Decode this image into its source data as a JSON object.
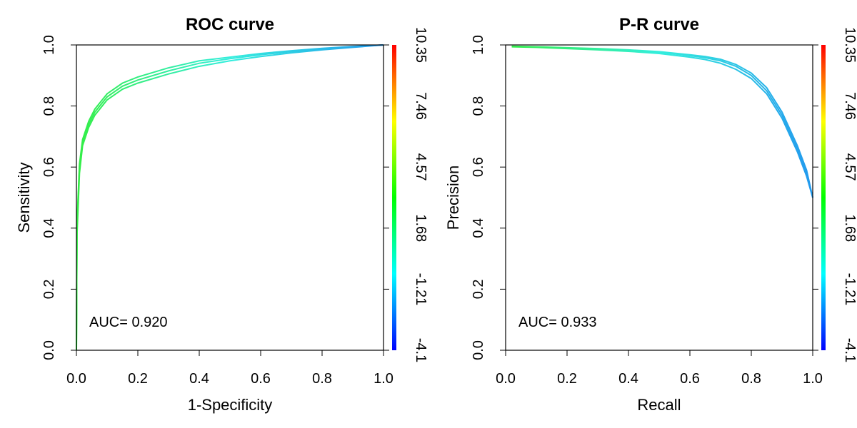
{
  "chart_data": [
    {
      "type": "line",
      "title": "ROC curve",
      "xlabel": "1-Specificity",
      "ylabel": "Sensitivity",
      "annotation": "AUC= 0.920",
      "x": [
        0,
        0.002,
        0.01,
        0.02,
        0.04,
        0.06,
        0.1,
        0.15,
        0.2,
        0.3,
        0.4,
        0.5,
        0.6,
        0.7,
        0.8,
        0.9,
        1.0
      ],
      "series": [
        {
          "values": [
            0,
            0.4,
            0.6,
            0.68,
            0.74,
            0.78,
            0.83,
            0.865,
            0.885,
            0.915,
            0.94,
            0.955,
            0.968,
            0.978,
            0.987,
            0.994,
            1
          ]
        },
        {
          "values": [
            0,
            0.38,
            0.58,
            0.67,
            0.73,
            0.77,
            0.82,
            0.855,
            0.875,
            0.905,
            0.93,
            0.948,
            0.962,
            0.974,
            0.984,
            0.992,
            1
          ]
        },
        {
          "values": [
            0,
            0.42,
            0.61,
            0.69,
            0.75,
            0.79,
            0.84,
            0.875,
            0.895,
            0.925,
            0.948,
            0.96,
            0.972,
            0.981,
            0.989,
            0.995,
            1
          ]
        }
      ],
      "line_colors": [
        "#33ee44",
        "#33eedd",
        "#2299ee"
      ],
      "xlim": [
        0,
        1
      ],
      "ylim": [
        0,
        1
      ],
      "xticks": [
        {
          "value": 0,
          "label": "0.0"
        },
        0.2,
        0.4,
        0.6,
        0.8,
        {
          "value": 1,
          "label": "1.0"
        }
      ],
      "yticks": [
        {
          "value": 0,
          "label": "0.0"
        },
        0.2,
        0.4,
        0.6,
        0.8,
        {
          "value": 1,
          "label": "1.0"
        }
      ],
      "colorbar": {
        "lim": [
          -4.1,
          10.35
        ],
        "ticks": [
          -4.1,
          -1.21,
          1.68,
          4.57,
          7.46,
          10.35
        ],
        "colors": [
          "#0000ff",
          "#00ffff",
          "#00ff00",
          "#ffff00",
          "#ff0000"
        ]
      }
    },
    {
      "type": "line",
      "title": "P-R curve",
      "xlabel": "Recall",
      "ylabel": "Precision",
      "annotation": "AUC= 0.933",
      "x": [
        0.02,
        0.1,
        0.2,
        0.3,
        0.4,
        0.5,
        0.6,
        0.65,
        0.7,
        0.75,
        0.8,
        0.85,
        0.9,
        0.95,
        0.98,
        1.0
      ],
      "series": [
        {
          "values": [
            0.995,
            0.993,
            0.99,
            0.986,
            0.982,
            0.976,
            0.965,
            0.958,
            0.948,
            0.93,
            0.9,
            0.85,
            0.77,
            0.66,
            0.58,
            0.5
          ]
        },
        {
          "values": [
            0.994,
            0.992,
            0.988,
            0.984,
            0.979,
            0.972,
            0.96,
            0.952,
            0.94,
            0.92,
            0.89,
            0.84,
            0.76,
            0.65,
            0.57,
            0.5
          ]
        },
        {
          "values": [
            0.996,
            0.994,
            0.991,
            0.988,
            0.984,
            0.978,
            0.968,
            0.962,
            0.953,
            0.936,
            0.908,
            0.86,
            0.78,
            0.67,
            0.59,
            0.5
          ]
        }
      ],
      "line_colors": [
        "#33ee44",
        "#33eedd",
        "#2299ee"
      ],
      "xlim": [
        0,
        1
      ],
      "ylim": [
        0,
        1
      ],
      "xticks": [
        {
          "value": 0,
          "label": "0.0"
        },
        0.2,
        0.4,
        0.6,
        0.8,
        {
          "value": 1,
          "label": "1.0"
        }
      ],
      "yticks": [
        {
          "value": 0,
          "label": "0.0"
        },
        0.2,
        0.4,
        0.6,
        0.8,
        {
          "value": 1,
          "label": "1.0"
        }
      ],
      "colorbar": {
        "lim": [
          -4.1,
          10.35
        ],
        "ticks": [
          -4.1,
          -1.21,
          1.68,
          4.57,
          7.46,
          10.35
        ],
        "colors": [
          "#0000ff",
          "#00ffff",
          "#00ff00",
          "#ffff00",
          "#ff0000"
        ]
      }
    }
  ]
}
